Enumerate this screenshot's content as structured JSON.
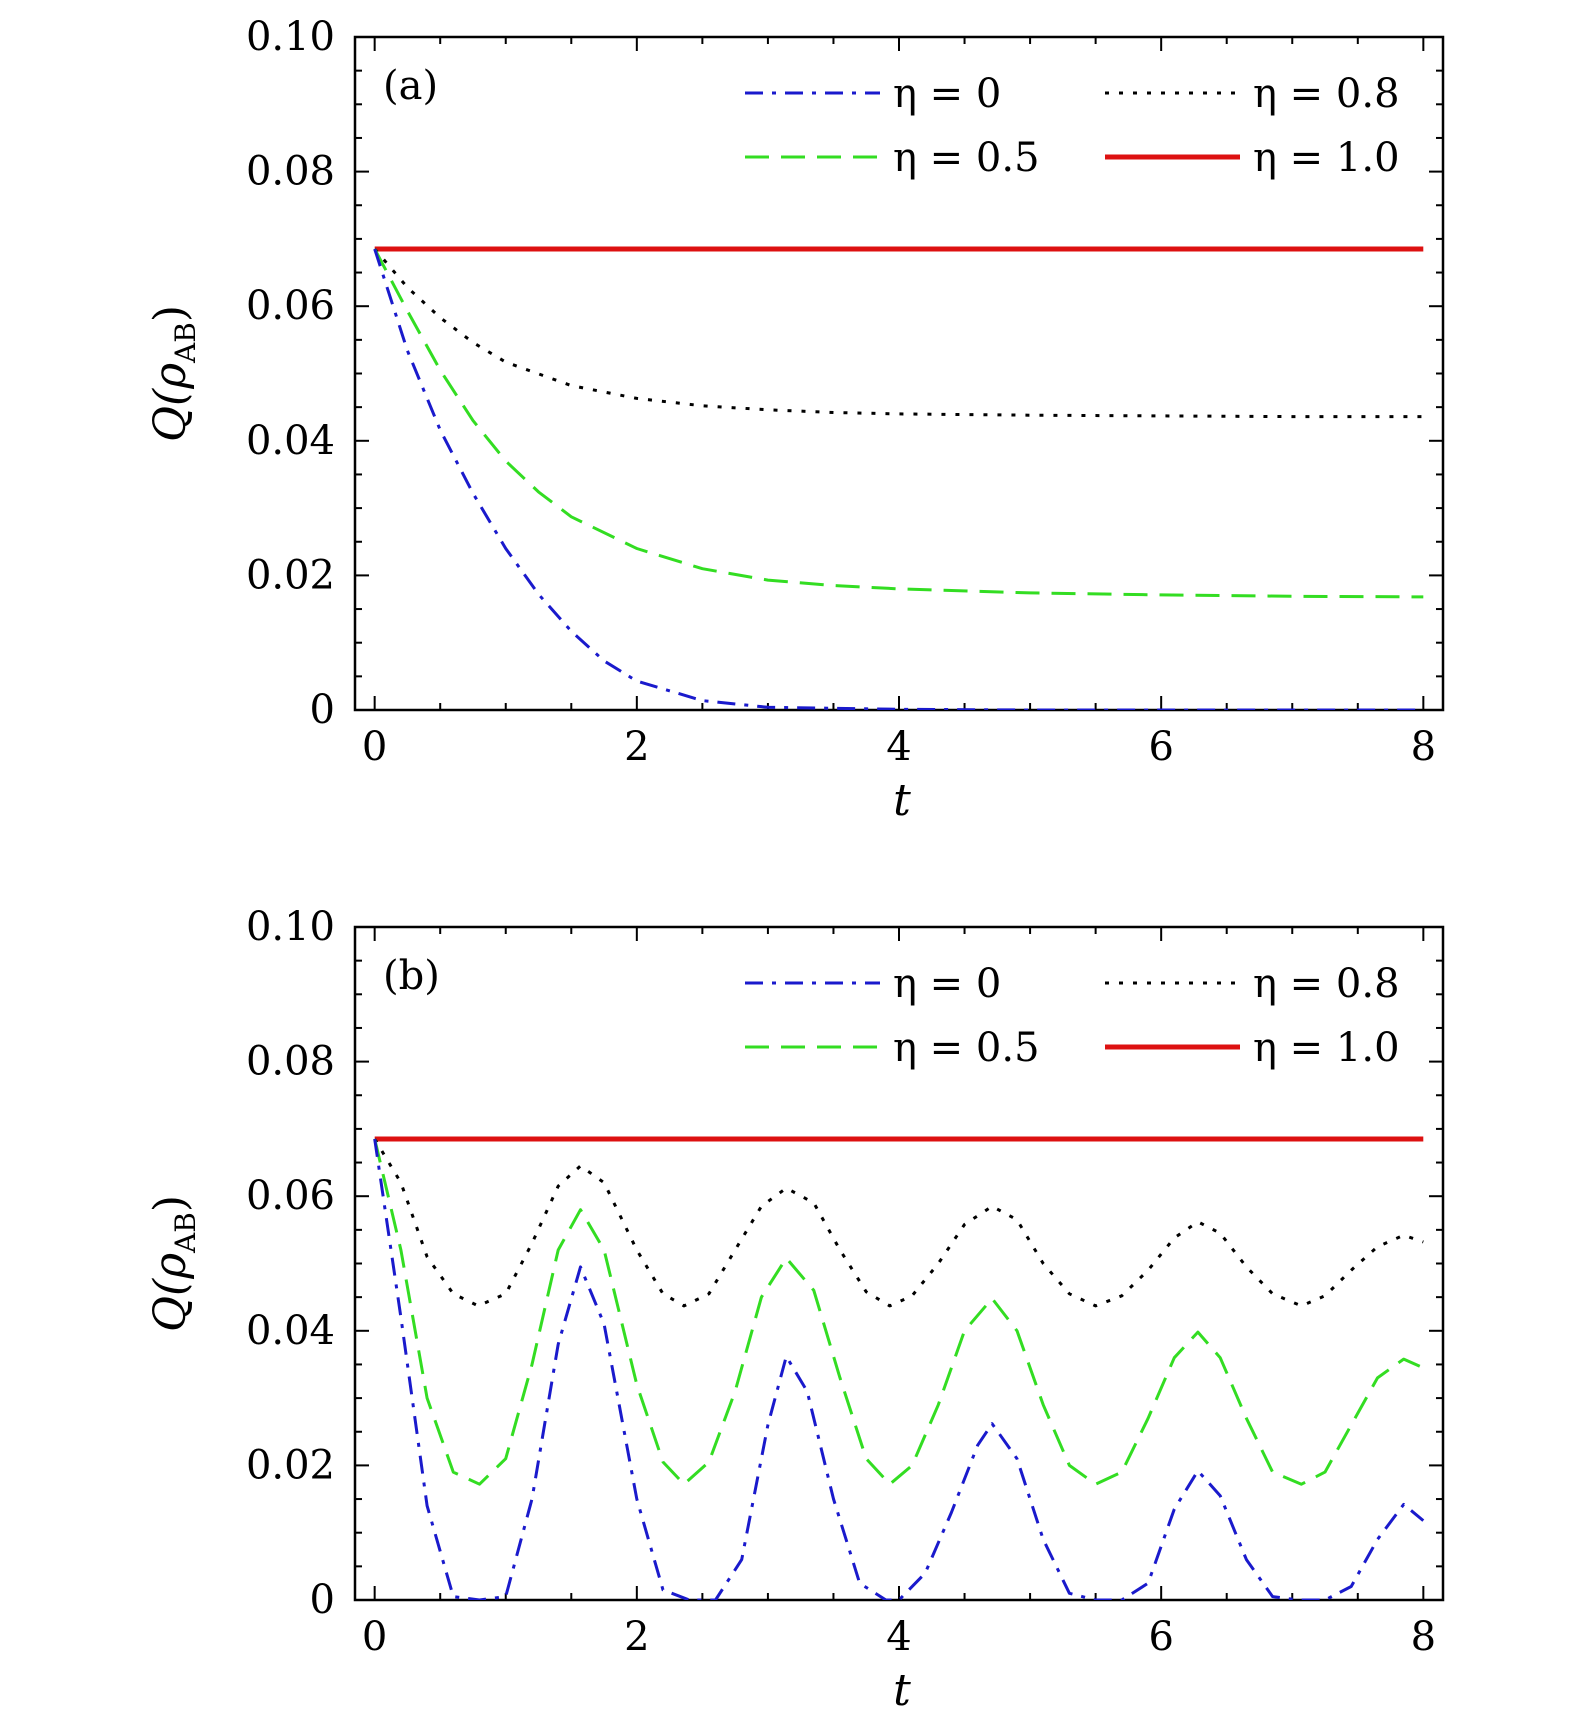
{
  "chart_data": [
    {
      "type": "line",
      "panel_label": "(a)",
      "xlabel": "t",
      "ylabel": "Q(ρ_AB)",
      "ylabel_main": "Q(ρ",
      "ylabel_sub": "AB",
      "ylabel_close": ")",
      "xlim": [
        -0.15,
        8.15
      ],
      "ylim": [
        0,
        0.1
      ],
      "x_ticks": [
        "0",
        "2",
        "4",
        "6",
        "8"
      ],
      "y_ticks": [
        "0",
        "0.02",
        "0.04",
        "0.06",
        "0.08",
        "0.10"
      ],
      "grid": false,
      "legend_position": "top-right",
      "series": [
        {
          "name": "η = 0",
          "color": "#1a1acc",
          "style": "dashdot",
          "x": [
            0,
            0.25,
            0.5,
            0.75,
            1.0,
            1.25,
            1.5,
            1.75,
            2.0,
            2.5,
            3.0,
            4.0,
            5.0,
            6.0,
            7.0,
            8.0
          ],
          "y": [
            0.0685,
            0.0534,
            0.0416,
            0.0322,
            0.024,
            0.0172,
            0.0117,
            0.0073,
            0.0043,
            0.0014,
            0.0004,
            0.0001,
            0.0,
            0.0,
            0.0,
            0.0
          ]
        },
        {
          "name": "η = 0.5",
          "color": "#33dd22",
          "style": "dashed",
          "x": [
            0,
            0.25,
            0.5,
            0.75,
            1.0,
            1.25,
            1.5,
            2.0,
            2.5,
            3.0,
            3.5,
            4.0,
            5.0,
            6.0,
            7.0,
            8.0
          ],
          "y": [
            0.0685,
            0.0593,
            0.0505,
            0.043,
            0.037,
            0.0324,
            0.0287,
            0.024,
            0.021,
            0.0193,
            0.0185,
            0.018,
            0.0174,
            0.0171,
            0.0169,
            0.0168
          ]
        },
        {
          "name": "η = 0.8",
          "color": "#000000",
          "style": "dotted",
          "x": [
            0,
            0.25,
            0.5,
            0.75,
            1.0,
            1.5,
            2.0,
            2.5,
            3.0,
            3.5,
            4.0,
            5.0,
            6.0,
            7.0,
            8.0
          ],
          "y": [
            0.0685,
            0.0628,
            0.0583,
            0.0546,
            0.0517,
            0.0482,
            0.0463,
            0.0452,
            0.0446,
            0.0442,
            0.044,
            0.0438,
            0.0437,
            0.0436,
            0.0436
          ]
        },
        {
          "name": "η = 1.0",
          "color": "#dd1111",
          "style": "solid",
          "x": [
            0,
            8
          ],
          "y": [
            0.0685,
            0.0685
          ]
        }
      ]
    },
    {
      "type": "line",
      "panel_label": "(b)",
      "xlabel": "t",
      "ylabel": "Q(ρ_AB)",
      "ylabel_main": "Q(ρ",
      "ylabel_sub": "AB",
      "ylabel_close": ")",
      "xlim": [
        -0.15,
        8.15
      ],
      "ylim": [
        0,
        0.1
      ],
      "x_ticks": [
        "0",
        "2",
        "4",
        "6",
        "8"
      ],
      "y_ticks": [
        "0",
        "0.02",
        "0.04",
        "0.06",
        "0.08",
        "0.10"
      ],
      "grid": false,
      "legend_position": "top-right",
      "series": [
        {
          "name": "η = 0",
          "color": "#1a1acc",
          "style": "dashdot",
          "x": [
            0,
            0.2,
            0.4,
            0.6,
            0.8,
            1.0,
            1.2,
            1.4,
            1.57,
            1.75,
            2.0,
            2.2,
            2.4,
            2.6,
            2.8,
            3.0,
            3.14,
            3.3,
            3.5,
            3.7,
            3.9,
            4.0,
            4.2,
            4.4,
            4.6,
            4.71,
            4.9,
            5.1,
            5.3,
            5.5,
            5.7,
            5.9,
            6.1,
            6.28,
            6.45,
            6.65,
            6.85,
            7.05,
            7.25,
            7.45,
            7.65,
            7.85,
            8.0
          ],
          "y": [
            0.0685,
            0.042,
            0.014,
            0.0005,
            0.0,
            0.0005,
            0.015,
            0.038,
            0.0495,
            0.041,
            0.015,
            0.0015,
            0.0,
            0.0,
            0.006,
            0.026,
            0.0362,
            0.031,
            0.015,
            0.0025,
            0.0,
            0.0,
            0.004,
            0.013,
            0.023,
            0.0262,
            0.021,
            0.009,
            0.001,
            0.0,
            0.0,
            0.0025,
            0.0135,
            0.0192,
            0.0155,
            0.006,
            0.0005,
            0.0,
            0.0,
            0.002,
            0.009,
            0.0142,
            0.0118
          ]
        },
        {
          "name": "η = 0.5",
          "color": "#33dd22",
          "style": "dashed",
          "x": [
            0,
            0.2,
            0.4,
            0.6,
            0.8,
            1.0,
            1.2,
            1.4,
            1.57,
            1.75,
            2.0,
            2.2,
            2.36,
            2.55,
            2.75,
            2.95,
            3.14,
            3.35,
            3.55,
            3.75,
            3.93,
            4.1,
            4.3,
            4.5,
            4.71,
            4.9,
            5.1,
            5.3,
            5.5,
            5.7,
            5.9,
            6.1,
            6.28,
            6.45,
            6.65,
            6.85,
            7.07,
            7.25,
            7.45,
            7.65,
            7.85,
            8.0
          ],
          "y": [
            0.0685,
            0.052,
            0.03,
            0.019,
            0.0172,
            0.021,
            0.035,
            0.052,
            0.058,
            0.052,
            0.032,
            0.0205,
            0.0172,
            0.0205,
            0.031,
            0.045,
            0.0508,
            0.046,
            0.033,
            0.021,
            0.0172,
            0.02,
            0.029,
            0.04,
            0.0448,
            0.04,
            0.029,
            0.02,
            0.0172,
            0.019,
            0.027,
            0.036,
            0.0398,
            0.036,
            0.027,
            0.019,
            0.0172,
            0.019,
            0.026,
            0.033,
            0.0358,
            0.0345
          ]
        },
        {
          "name": "η = 0.8",
          "color": "#000000",
          "style": "dotted",
          "x": [
            0,
            0.2,
            0.4,
            0.6,
            0.79,
            1.0,
            1.2,
            1.4,
            1.57,
            1.75,
            2.0,
            2.2,
            2.36,
            2.55,
            2.75,
            2.95,
            3.14,
            3.35,
            3.55,
            3.75,
            3.93,
            4.1,
            4.3,
            4.5,
            4.71,
            4.9,
            5.1,
            5.3,
            5.5,
            5.7,
            5.9,
            6.1,
            6.28,
            6.45,
            6.65,
            6.85,
            7.07,
            7.25,
            7.45,
            7.65,
            7.85,
            8.0
          ],
          "y": [
            0.0685,
            0.062,
            0.051,
            0.0455,
            0.0437,
            0.0455,
            0.053,
            0.0615,
            0.0645,
            0.062,
            0.052,
            0.0455,
            0.0437,
            0.0455,
            0.052,
            0.0585,
            0.0612,
            0.059,
            0.052,
            0.0458,
            0.0437,
            0.0452,
            0.05,
            0.0558,
            0.0585,
            0.0565,
            0.05,
            0.0455,
            0.0437,
            0.0452,
            0.049,
            0.0538,
            0.0562,
            0.0545,
            0.0495,
            0.0455,
            0.0437,
            0.0452,
            0.049,
            0.0525,
            0.0542,
            0.0532
          ]
        },
        {
          "name": "η = 1.0",
          "color": "#dd1111",
          "style": "solid",
          "x": [
            0,
            8
          ],
          "y": [
            0.0685,
            0.0685
          ]
        }
      ]
    }
  ]
}
